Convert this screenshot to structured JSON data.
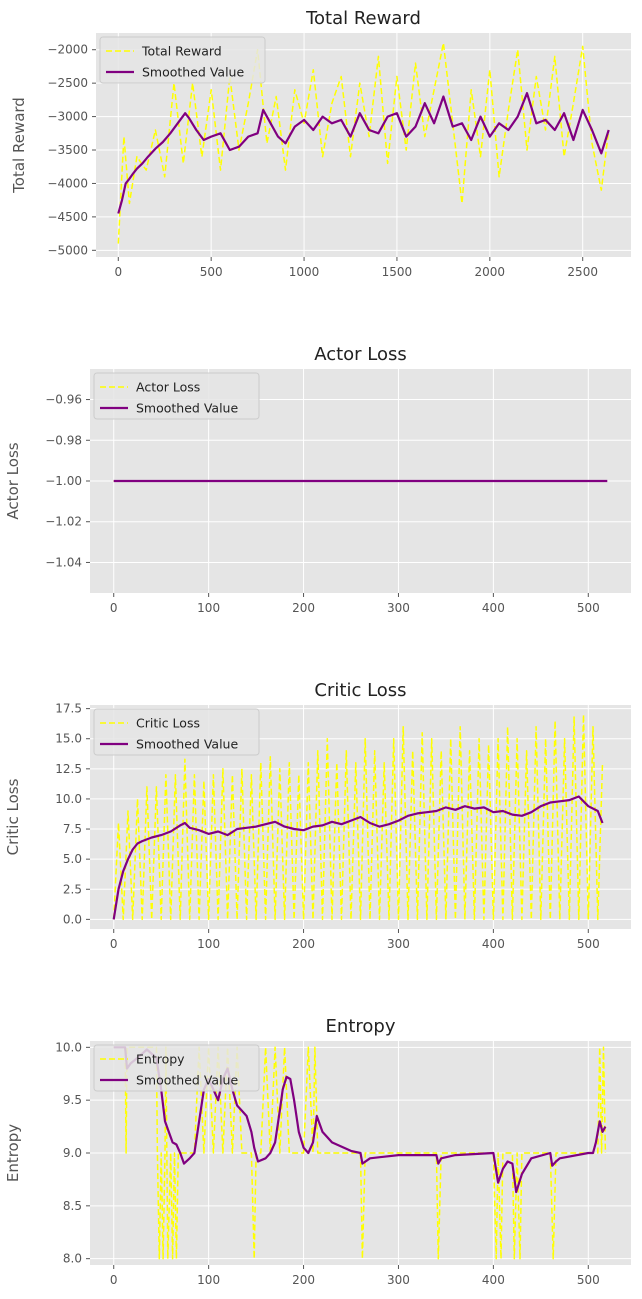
{
  "chart_data": [
    {
      "type": "line",
      "title": "Total Reward",
      "xlabel": "",
      "ylabel": "Total Reward",
      "xlim": [
        -120,
        2760
      ],
      "ylim": [
        -5100,
        -1750
      ],
      "xticks": [
        0,
        500,
        1000,
        1500,
        2000,
        2500
      ],
      "yticks": [
        -5000,
        -4500,
        -4000,
        -3500,
        -3000,
        -2500,
        -2000
      ],
      "xtick_labels": [
        "0",
        "500",
        "1000",
        "1500",
        "2000",
        "2500"
      ],
      "ytick_labels": [
        "−5000",
        "−4500",
        "−4000",
        "−3500",
        "−3000",
        "−2500",
        "−2000"
      ],
      "grid": true,
      "legend_position": "top-left",
      "series": [
        {
          "name": "Total Reward",
          "style": "dashed",
          "color": "#ffff00",
          "x": [
            0,
            30,
            60,
            100,
            150,
            200,
            250,
            300,
            350,
            400,
            450,
            500,
            550,
            600,
            650,
            700,
            750,
            800,
            850,
            900,
            950,
            1000,
            1050,
            1100,
            1150,
            1200,
            1250,
            1300,
            1350,
            1400,
            1450,
            1500,
            1550,
            1600,
            1650,
            1700,
            1750,
            1800,
            1850,
            1900,
            1950,
            2000,
            2050,
            2100,
            2150,
            2200,
            2250,
            2300,
            2350,
            2400,
            2450,
            2500,
            2550,
            2600,
            2640
          ],
          "y": [
            -4900,
            -3300,
            -4300,
            -3600,
            -3800,
            -3200,
            -3900,
            -2500,
            -3700,
            -2500,
            -3600,
            -2600,
            -3800,
            -2400,
            -3500,
            -2800,
            -2000,
            -3400,
            -2700,
            -3800,
            -2600,
            -3100,
            -2300,
            -3600,
            -2800,
            -2400,
            -3600,
            -2500,
            -3300,
            -2100,
            -3700,
            -2400,
            -3500,
            -2200,
            -3300,
            -2600,
            -1900,
            -3100,
            -4300,
            -2600,
            -3600,
            -2300,
            -3900,
            -2900,
            -2000,
            -3500,
            -2400,
            -3200,
            -2100,
            -3600,
            -2800,
            -1950,
            -3400,
            -4100,
            -3200
          ]
        },
        {
          "name": "Smoothed Value",
          "style": "solid",
          "color": "#800080",
          "x": [
            0,
            20,
            40,
            60,
            80,
            100,
            130,
            160,
            200,
            240,
            280,
            320,
            360,
            380,
            420,
            460,
            500,
            550,
            600,
            650,
            700,
            750,
            780,
            820,
            860,
            900,
            950,
            1000,
            1050,
            1100,
            1150,
            1200,
            1250,
            1300,
            1350,
            1400,
            1450,
            1500,
            1550,
            1600,
            1650,
            1700,
            1750,
            1800,
            1850,
            1900,
            1950,
            2000,
            2050,
            2100,
            2150,
            2200,
            2250,
            2300,
            2350,
            2400,
            2450,
            2500,
            2550,
            2600,
            2640
          ],
          "y": [
            -4450,
            -4250,
            -4000,
            -3930,
            -3850,
            -3780,
            -3700,
            -3600,
            -3480,
            -3380,
            -3250,
            -3100,
            -2950,
            -3020,
            -3200,
            -3350,
            -3300,
            -3250,
            -3500,
            -3450,
            -3300,
            -3250,
            -2900,
            -3100,
            -3300,
            -3400,
            -3150,
            -3050,
            -3200,
            -3000,
            -3100,
            -3050,
            -3300,
            -2950,
            -3200,
            -3250,
            -3000,
            -2950,
            -3300,
            -3150,
            -2800,
            -3100,
            -2700,
            -3150,
            -3100,
            -3350,
            -3000,
            -3300,
            -3100,
            -3200,
            -3000,
            -2650,
            -3100,
            -3050,
            -3200,
            -2950,
            -3350,
            -2900,
            -3200,
            -3550,
            -3200
          ]
        }
      ]
    },
    {
      "type": "line",
      "title": "Actor Loss",
      "xlabel": "",
      "ylabel": "Actor Loss",
      "xlim": [
        -25,
        545
      ],
      "ylim": [
        -1.055,
        -0.945
      ],
      "xticks": [
        0,
        100,
        200,
        300,
        400,
        500
      ],
      "yticks": [
        -1.04,
        -1.02,
        -1.0,
        -0.98,
        -0.96
      ],
      "xtick_labels": [
        "0",
        "100",
        "200",
        "300",
        "400",
        "500"
      ],
      "ytick_labels": [
        "−1.04",
        "−1.02",
        "−1.00",
        "−0.98",
        "−0.96"
      ],
      "grid": true,
      "legend_position": "top-left",
      "series": [
        {
          "name": "Actor Loss",
          "style": "dashed",
          "color": "#ffff00",
          "x": [
            0,
            520
          ],
          "y": [
            -1.0,
            -1.0
          ]
        },
        {
          "name": "Smoothed Value",
          "style": "solid",
          "color": "#800080",
          "x": [
            0,
            520
          ],
          "y": [
            -1.0,
            -1.0
          ]
        }
      ]
    },
    {
      "type": "line",
      "title": "Critic Loss",
      "xlabel": "",
      "ylabel": "Critic Loss",
      "xlim": [
        -25,
        545
      ],
      "ylim": [
        -0.8,
        17.8
      ],
      "xticks": [
        0,
        100,
        200,
        300,
        400,
        500
      ],
      "yticks": [
        0.0,
        2.5,
        5.0,
        7.5,
        10.0,
        12.5,
        15.0,
        17.5
      ],
      "xtick_labels": [
        "0",
        "100",
        "200",
        "300",
        "400",
        "500"
      ],
      "ytick_labels": [
        "0.0",
        "2.5",
        "5.0",
        "7.5",
        "10.0",
        "12.5",
        "15.0",
        "17.5"
      ],
      "grid": true,
      "legend_position": "top-left",
      "series": [
        {
          "name": "Critic Loss",
          "style": "dashed",
          "color": "#ffff00",
          "x": [
            0,
            5,
            10,
            15,
            20,
            25,
            30,
            35,
            40,
            45,
            50,
            55,
            60,
            65,
            70,
            75,
            80,
            85,
            90,
            95,
            100,
            105,
            110,
            115,
            120,
            125,
            130,
            135,
            140,
            145,
            150,
            155,
            160,
            165,
            170,
            175,
            180,
            185,
            190,
            195,
            200,
            205,
            210,
            215,
            220,
            225,
            230,
            235,
            240,
            245,
            250,
            255,
            260,
            265,
            270,
            275,
            280,
            285,
            290,
            295,
            300,
            305,
            310,
            315,
            320,
            325,
            330,
            335,
            340,
            345,
            350,
            355,
            360,
            365,
            370,
            375,
            380,
            385,
            390,
            395,
            400,
            405,
            410,
            415,
            420,
            425,
            430,
            435,
            440,
            445,
            450,
            455,
            460,
            465,
            470,
            475,
            480,
            485,
            490,
            495,
            500,
            505,
            510,
            515
          ],
          "y": [
            0,
            8,
            0,
            9,
            0,
            10,
            0,
            11,
            0,
            11,
            0,
            12,
            0,
            12,
            0,
            13.3,
            0,
            12,
            0,
            11.5,
            0,
            12,
            0,
            12.5,
            0,
            12,
            0,
            12.5,
            0,
            12,
            0,
            13,
            0,
            13.5,
            0,
            12.5,
            0,
            13,
            0,
            12,
            0,
            13,
            0,
            14,
            0,
            15,
            0,
            13,
            0,
            14,
            0,
            13,
            0,
            15,
            0,
            14,
            0,
            13,
            0,
            15,
            0,
            16,
            0,
            14,
            0,
            15.5,
            0,
            15,
            0,
            14,
            0,
            15,
            0,
            16,
            0,
            14,
            0,
            15,
            0,
            14.5,
            0,
            15,
            0,
            16,
            0,
            15,
            0,
            14,
            0,
            16,
            0,
            15,
            0,
            16.5,
            0,
            15,
            0,
            16.8,
            0,
            17,
            0,
            16,
            0,
            13
          ]
        },
        {
          "name": "Smoothed Value",
          "style": "solid",
          "color": "#800080",
          "x": [
            0,
            5,
            10,
            15,
            20,
            25,
            30,
            40,
            50,
            60,
            70,
            75,
            80,
            90,
            100,
            110,
            120,
            130,
            140,
            150,
            160,
            170,
            180,
            190,
            200,
            210,
            220,
            230,
            240,
            250,
            260,
            270,
            280,
            290,
            300,
            310,
            320,
            330,
            340,
            350,
            360,
            370,
            380,
            390,
            400,
            410,
            420,
            430,
            440,
            450,
            460,
            470,
            480,
            490,
            500,
            510,
            515
          ],
          "y": [
            0,
            2.5,
            4,
            5,
            5.8,
            6.3,
            6.5,
            6.8,
            7,
            7.3,
            7.8,
            8,
            7.6,
            7.4,
            7.1,
            7.3,
            7.0,
            7.5,
            7.6,
            7.7,
            7.9,
            8.1,
            7.7,
            7.5,
            7.4,
            7.7,
            7.8,
            8.1,
            7.9,
            8.2,
            8.5,
            8.0,
            7.7,
            7.9,
            8.2,
            8.6,
            8.8,
            8.9,
            9.0,
            9.3,
            9.1,
            9.4,
            9.2,
            9.3,
            8.9,
            9.0,
            8.7,
            8.6,
            8.9,
            9.4,
            9.7,
            9.8,
            9.9,
            10.2,
            9.4,
            9.0,
            8.0
          ]
        }
      ]
    },
    {
      "type": "line",
      "title": "Entropy",
      "xlabel": "",
      "ylabel": "Entropy",
      "xlim": [
        -25,
        545
      ],
      "ylim": [
        7.94,
        10.06
      ],
      "xticks": [
        0,
        100,
        200,
        300,
        400,
        500
      ],
      "yticks": [
        8.0,
        8.5,
        9.0,
        9.5,
        10.0
      ],
      "xtick_labels": [
        "0",
        "100",
        "200",
        "300",
        "400",
        "500"
      ],
      "ytick_labels": [
        "8.0",
        "8.5",
        "9.0",
        "9.5",
        "10.0"
      ],
      "grid": true,
      "legend_position": "top-left",
      "series": [
        {
          "name": "Entropy",
          "style": "dashed",
          "color": "#ffff00",
          "x": [
            0,
            12,
            13,
            14,
            15,
            45,
            46,
            48,
            50,
            52,
            54,
            55,
            57,
            60,
            62,
            64,
            66,
            68,
            70,
            72,
            85,
            90,
            95,
            100,
            105,
            110,
            115,
            120,
            125,
            130,
            135,
            140,
            145,
            148,
            150,
            152,
            155,
            160,
            165,
            170,
            175,
            180,
            185,
            190,
            195,
            200,
            205,
            210,
            212,
            215,
            220,
            260,
            262,
            265,
            300,
            340,
            342,
            345,
            360,
            400,
            403,
            405,
            408,
            410,
            420,
            422,
            425,
            428,
            430,
            460,
            463,
            466,
            470,
            500,
            510,
            512,
            514,
            516,
            518
          ],
          "y": [
            10,
            10,
            9.0,
            10,
            10,
            10,
            9.0,
            8.0,
            9.0,
            8.0,
            9.0,
            10,
            8.0,
            9.0,
            8.0,
            9.0,
            8.0,
            9.0,
            9.0,
            9.0,
            9.0,
            10,
            9.0,
            10,
            9.0,
            10,
            9.0,
            10,
            9.0,
            10,
            9.0,
            9.0,
            9.0,
            8.0,
            9.0,
            9.0,
            9.0,
            10,
            9.0,
            10,
            9.0,
            10,
            9.0,
            9.0,
            9.0,
            9.0,
            10,
            9.0,
            10,
            9.0,
            9.0,
            9.0,
            8.0,
            9.0,
            9.0,
            9.0,
            8.0,
            9.0,
            9.0,
            9.0,
            8.0,
            9.0,
            8.0,
            9.0,
            9.0,
            8.0,
            9.0,
            8.0,
            9.0,
            9.0,
            8.0,
            9.0,
            9.0,
            9.0,
            9.0,
            10,
            9.0,
            10,
            9.0
          ]
        },
        {
          "name": "Smoothed Value",
          "style": "solid",
          "color": "#800080",
          "x": [
            0,
            12,
            14,
            18,
            25,
            35,
            45,
            50,
            54,
            58,
            62,
            66,
            70,
            74,
            80,
            85,
            90,
            95,
            100,
            105,
            110,
            115,
            120,
            125,
            130,
            135,
            140,
            145,
            148,
            152,
            160,
            165,
            170,
            175,
            178,
            182,
            186,
            190,
            195,
            200,
            205,
            210,
            214,
            220,
            230,
            250,
            260,
            262,
            270,
            300,
            340,
            342,
            345,
            360,
            400,
            405,
            410,
            415,
            420,
            424,
            430,
            440,
            460,
            462,
            466,
            470,
            500,
            505,
            508,
            512,
            515,
            518
          ],
          "y": [
            10,
            10,
            9.8,
            9.85,
            9.9,
            9.98,
            9.9,
            9.6,
            9.3,
            9.2,
            9.1,
            9.08,
            9.0,
            8.9,
            8.95,
            9.0,
            9.3,
            9.6,
            9.7,
            9.6,
            9.5,
            9.7,
            9.8,
            9.6,
            9.45,
            9.4,
            9.35,
            9.2,
            9.05,
            8.92,
            8.95,
            9.0,
            9.1,
            9.4,
            9.6,
            9.72,
            9.7,
            9.5,
            9.2,
            9.05,
            9.0,
            9.1,
            9.35,
            9.2,
            9.1,
            9.02,
            9.0,
            8.9,
            8.95,
            8.98,
            8.98,
            8.9,
            8.95,
            8.98,
            9.0,
            8.72,
            8.85,
            8.92,
            8.9,
            8.63,
            8.8,
            8.95,
            9.0,
            8.88,
            8.92,
            8.95,
            9.0,
            9.0,
            9.1,
            9.3,
            9.2,
            9.25
          ]
        }
      ]
    }
  ]
}
